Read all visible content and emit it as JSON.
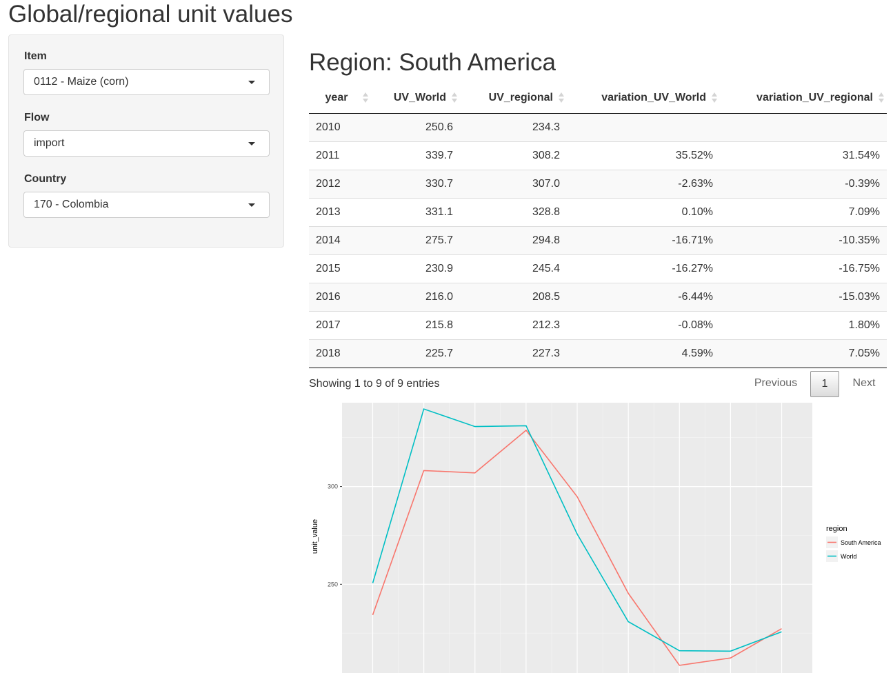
{
  "app": {
    "title": "Global/regional unit values"
  },
  "sidebar": {
    "item_label": "Item",
    "item_value": "0112 - Maize (corn)",
    "flow_label": "Flow",
    "flow_value": "import",
    "country_label": "Country",
    "country_value": "170 - Colombia"
  },
  "main": {
    "region_title": "Region: South America"
  },
  "table": {
    "columns": [
      "year",
      "UV_World",
      "UV_regional",
      "variation_UV_World",
      "variation_UV_regional"
    ],
    "rows": [
      [
        "2010",
        "250.6",
        "234.3",
        "",
        ""
      ],
      [
        "2011",
        "339.7",
        "308.2",
        "35.52%",
        "31.54%"
      ],
      [
        "2012",
        "330.7",
        "307.0",
        "-2.63%",
        "-0.39%"
      ],
      [
        "2013",
        "331.1",
        "328.8",
        "0.10%",
        "7.09%"
      ],
      [
        "2014",
        "275.7",
        "294.8",
        "-16.71%",
        "-10.35%"
      ],
      [
        "2015",
        "230.9",
        "245.4",
        "-16.27%",
        "-16.75%"
      ],
      [
        "2016",
        "216.0",
        "208.5",
        "-6.44%",
        "-15.03%"
      ],
      [
        "2017",
        "215.8",
        "212.3",
        "-0.08%",
        "1.80%"
      ],
      [
        "2018",
        "225.7",
        "227.3",
        "4.59%",
        "7.05%"
      ]
    ],
    "info": "Showing 1 to 9 of 9 entries",
    "pager": {
      "previous": "Previous",
      "page": "1",
      "next": "Next"
    }
  },
  "colors": {
    "south_america": "#F8766D",
    "world": "#00BFC4",
    "panel": "#EBEBEB"
  },
  "chart_data": {
    "type": "line",
    "xlabel": "",
    "ylabel": "unit_value",
    "ylim": [
      204.6,
      342.9
    ],
    "xlim": [
      2009.4,
      2018.6
    ],
    "yticks": [
      250,
      300
    ],
    "grid": true,
    "legend_title": "region",
    "legend_position": "right",
    "x": [
      2010,
      2011,
      2012,
      2013,
      2014,
      2015,
      2016,
      2017,
      2018
    ],
    "series": [
      {
        "name": "South America",
        "color": "#F8766D",
        "values": [
          234.3,
          308.2,
          307.0,
          328.8,
          294.8,
          245.4,
          208.5,
          212.3,
          227.3
        ]
      },
      {
        "name": "World",
        "color": "#00BFC4",
        "values": [
          250.6,
          339.7,
          330.7,
          331.1,
          275.7,
          230.9,
          216.0,
          215.8,
          225.7
        ]
      }
    ]
  }
}
